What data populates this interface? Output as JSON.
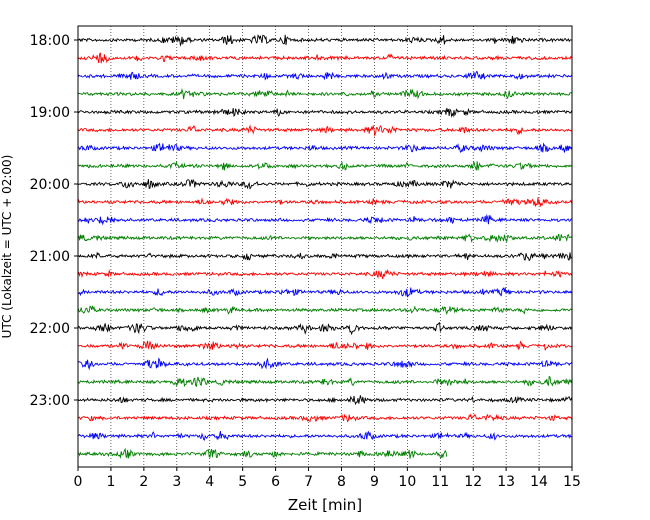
{
  "chart_data": {
    "type": "line",
    "xlabel": "Zeit  [min]",
    "ylabel": "UTC (Lokalzeit = UTC + 02:00)",
    "xlim": [
      0,
      15
    ],
    "x_ticks": [
      "0",
      "1",
      "2",
      "3",
      "4",
      "5",
      "6",
      "7",
      "8",
      "9",
      "10",
      "11",
      "12",
      "13",
      "14",
      "15"
    ],
    "y_ticks": [
      "18:00",
      "19:00",
      "20:00",
      "21:00",
      "22:00",
      "23:00"
    ],
    "grid": "vertical dotted",
    "trace_colors": [
      "#000000",
      "#ff0000",
      "#0000ff",
      "#008000"
    ],
    "traces": [
      {
        "start": "18:00",
        "end_min": 15
      },
      {
        "start": "18:15",
        "end_min": 15
      },
      {
        "start": "18:30",
        "end_min": 15
      },
      {
        "start": "18:45",
        "end_min": 15
      },
      {
        "start": "19:00",
        "end_min": 15
      },
      {
        "start": "19:15",
        "end_min": 15
      },
      {
        "start": "19:30",
        "end_min": 15
      },
      {
        "start": "19:45",
        "end_min": 15
      },
      {
        "start": "20:00",
        "end_min": 15
      },
      {
        "start": "20:15",
        "end_min": 15
      },
      {
        "start": "20:30",
        "end_min": 15
      },
      {
        "start": "20:45",
        "end_min": 15
      },
      {
        "start": "21:00",
        "end_min": 15
      },
      {
        "start": "21:15",
        "end_min": 15
      },
      {
        "start": "21:30",
        "end_min": 15
      },
      {
        "start": "21:45",
        "end_min": 15
      },
      {
        "start": "22:00",
        "end_min": 15
      },
      {
        "start": "22:15",
        "end_min": 15
      },
      {
        "start": "22:30",
        "end_min": 15
      },
      {
        "start": "22:45",
        "end_min": 15
      },
      {
        "start": "23:00",
        "end_min": 15
      },
      {
        "start": "23:15",
        "end_min": 15
      },
      {
        "start": "23:30",
        "end_min": 15
      },
      {
        "start": "23:45",
        "end_min": 11.2
      }
    ]
  }
}
